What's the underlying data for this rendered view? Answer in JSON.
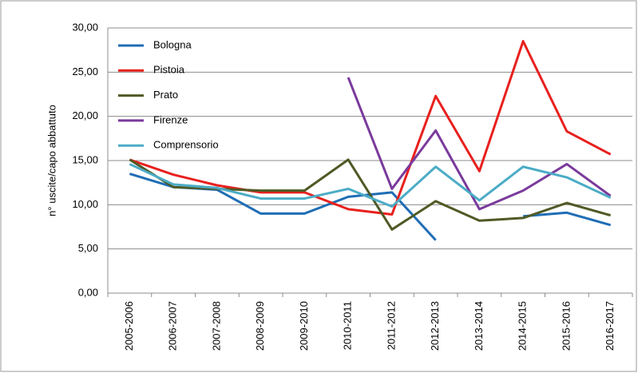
{
  "chart_data": {
    "type": "line",
    "y_label": "n° uscite/capo abbattuto",
    "categories": [
      "2005-2006",
      "2006-2007",
      "2007-2008",
      "2008-2009",
      "2009-2010",
      "2010-2011",
      "2011-2012",
      "2012-2013",
      "2013-2014",
      "2014-2015",
      "2015-2016",
      "2016-2017"
    ],
    "series": [
      {
        "name": "Bologna",
        "color": "#1f6db5",
        "values": [
          13.5,
          12.0,
          11.7,
          9.0,
          9.0,
          10.9,
          11.4,
          6.0,
          null,
          8.7,
          9.1,
          7.7
        ]
      },
      {
        "name": "Pistoia",
        "color": "#e8201e",
        "values": [
          15.1,
          13.4,
          12.2,
          11.4,
          11.4,
          9.5,
          8.9,
          22.3,
          13.8,
          28.5,
          18.3,
          15.7
        ]
      },
      {
        "name": "Prato",
        "color": "#4f5a25",
        "values": [
          15.1,
          12.0,
          11.8,
          11.6,
          11.6,
          15.1,
          7.2,
          10.4,
          8.2,
          8.5,
          10.2,
          8.8
        ]
      },
      {
        "name": "Firenze",
        "color": "#7a3a9c",
        "values": [
          null,
          null,
          null,
          null,
          null,
          24.4,
          11.8,
          18.4,
          9.5,
          11.6,
          14.6,
          11.0
        ]
      },
      {
        "name": "Comprensorio",
        "color": "#4bacc6",
        "values": [
          14.6,
          12.3,
          11.9,
          10.7,
          10.7,
          11.8,
          9.8,
          14.3,
          10.5,
          14.3,
          13.1,
          10.8
        ]
      }
    ],
    "ylim": [
      0,
      30
    ],
    "yticks": [
      {
        "value": 0,
        "label": "0,00"
      },
      {
        "value": 5,
        "label": "5,00"
      },
      {
        "value": 10,
        "label": "10,00"
      },
      {
        "value": 15,
        "label": "15,00"
      },
      {
        "value": 20,
        "label": "20,00"
      },
      {
        "value": 25,
        "label": "25,00"
      },
      {
        "value": 30,
        "label": "30,00"
      }
    ],
    "grid": true,
    "legend": "top-left"
  }
}
